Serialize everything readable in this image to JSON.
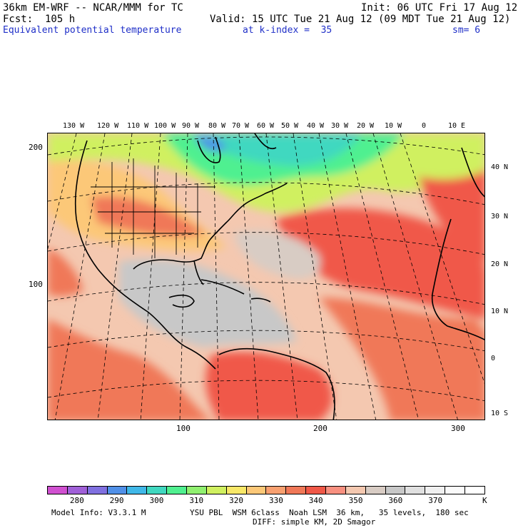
{
  "header": {
    "model_title": "36km EM-WRF -- NCAR/MMM for TC",
    "init": "Init: 06 UTC Fri 17 Aug 12",
    "forecast": "Fcst:  105 h",
    "valid": "Valid: 15 UTC Tue 21 Aug 12 (09 MDT Tue 21 Aug 12)",
    "field": "Equivalent potential temperature",
    "level": "at k-index =  35",
    "smoothing": "sm= 6"
  },
  "map": {
    "lon_labels": [
      "130 W",
      "120 W",
      "110 W",
      "100 W",
      "90 W",
      "80 W",
      "70 W",
      "60 W",
      "50 W",
      "40 W",
      "30 W",
      "20 W",
      "10 W",
      "0",
      "10 E"
    ],
    "lat_labels": [
      "40 N",
      "30 N",
      "20 N",
      "10 N",
      "0",
      "10 S"
    ],
    "y_grid_labels": [
      "200",
      "100"
    ],
    "x_grid_labels": [
      "100",
      "200",
      "300"
    ]
  },
  "legend": {
    "labels": [
      "280",
      "290",
      "300",
      "310",
      "320",
      "330",
      "340",
      "350",
      "360",
      "370"
    ],
    "unit": "K",
    "colors": [
      "#d050d0",
      "#a060d8",
      "#8070e0",
      "#5090e8",
      "#40b8e8",
      "#40d8c0",
      "#50f090",
      "#90f070",
      "#d0f060",
      "#f8e868",
      "#fcc878",
      "#f8a070",
      "#f07858",
      "#f05848",
      "#f89080",
      "#f4c8b0",
      "#d8ccc4",
      "#c8c8c8",
      "#e0e0e0",
      "#f0f0f0",
      "#fafafa",
      "#ffffff"
    ]
  },
  "footer": {
    "model_info": "Model Info: V3.3.1 M",
    "physics": "YSU PBL  WSM 6class  Noah LSM  36 km,   35 levels,  180 sec",
    "diffusion": "DIFF: simple KM, 2D Smagor"
  }
}
